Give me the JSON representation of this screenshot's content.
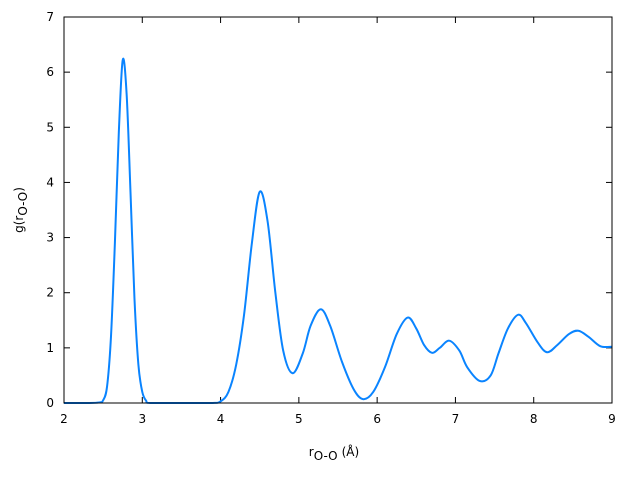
{
  "chart_data": {
    "type": "line",
    "title": "",
    "xlabel": "r",
    "xlabel_sub": "O-O",
    "xlabel_unit": "(Å)",
    "ylabel": "g(r",
    "ylabel_sub": "O-O",
    "ylabel_close": ")",
    "xlim": [
      2,
      9
    ],
    "ylim": [
      0,
      7
    ],
    "xticks": [
      "2",
      "3",
      "4",
      "5",
      "6",
      "7",
      "8",
      "9"
    ],
    "yticks": [
      "0",
      "1",
      "2",
      "3",
      "4",
      "5",
      "6",
      "7"
    ],
    "grid": false,
    "line_color": "#0a84ff",
    "series": [
      {
        "x": [
          2.0,
          2.3,
          2.45,
          2.5,
          2.55,
          2.6,
          2.65,
          2.7,
          2.75,
          2.8,
          2.85,
          2.9,
          2.95,
          3.0,
          3.05,
          3.1,
          3.5,
          3.9,
          4.0,
          4.1,
          4.2,
          4.3,
          4.4,
          4.5,
          4.6,
          4.7,
          4.8,
          4.92,
          5.05,
          5.15,
          5.28,
          5.4,
          5.55,
          5.7,
          5.82,
          5.95,
          6.1,
          6.25,
          6.39,
          6.5,
          6.6,
          6.7,
          6.8,
          6.92,
          7.05,
          7.15,
          7.31,
          7.45,
          7.55,
          7.67,
          7.8,
          7.9,
          8.05,
          8.17,
          8.3,
          8.45,
          8.57,
          8.7,
          8.85,
          9.0
        ],
        "y": [
          0,
          0,
          0.01,
          0.05,
          0.3,
          1.2,
          2.9,
          4.9,
          6.22,
          5.6,
          3.8,
          1.9,
          0.7,
          0.2,
          0.04,
          0,
          0,
          0,
          0.03,
          0.2,
          0.7,
          1.6,
          2.9,
          3.83,
          3.3,
          2.0,
          0.95,
          0.54,
          0.9,
          1.4,
          1.7,
          1.4,
          0.75,
          0.25,
          0.07,
          0.2,
          0.65,
          1.25,
          1.55,
          1.35,
          1.05,
          0.91,
          1.0,
          1.13,
          0.95,
          0.65,
          0.4,
          0.5,
          0.9,
          1.35,
          1.6,
          1.45,
          1.1,
          0.92,
          1.05,
          1.25,
          1.31,
          1.2,
          1.03,
          1.02
        ]
      }
    ]
  }
}
